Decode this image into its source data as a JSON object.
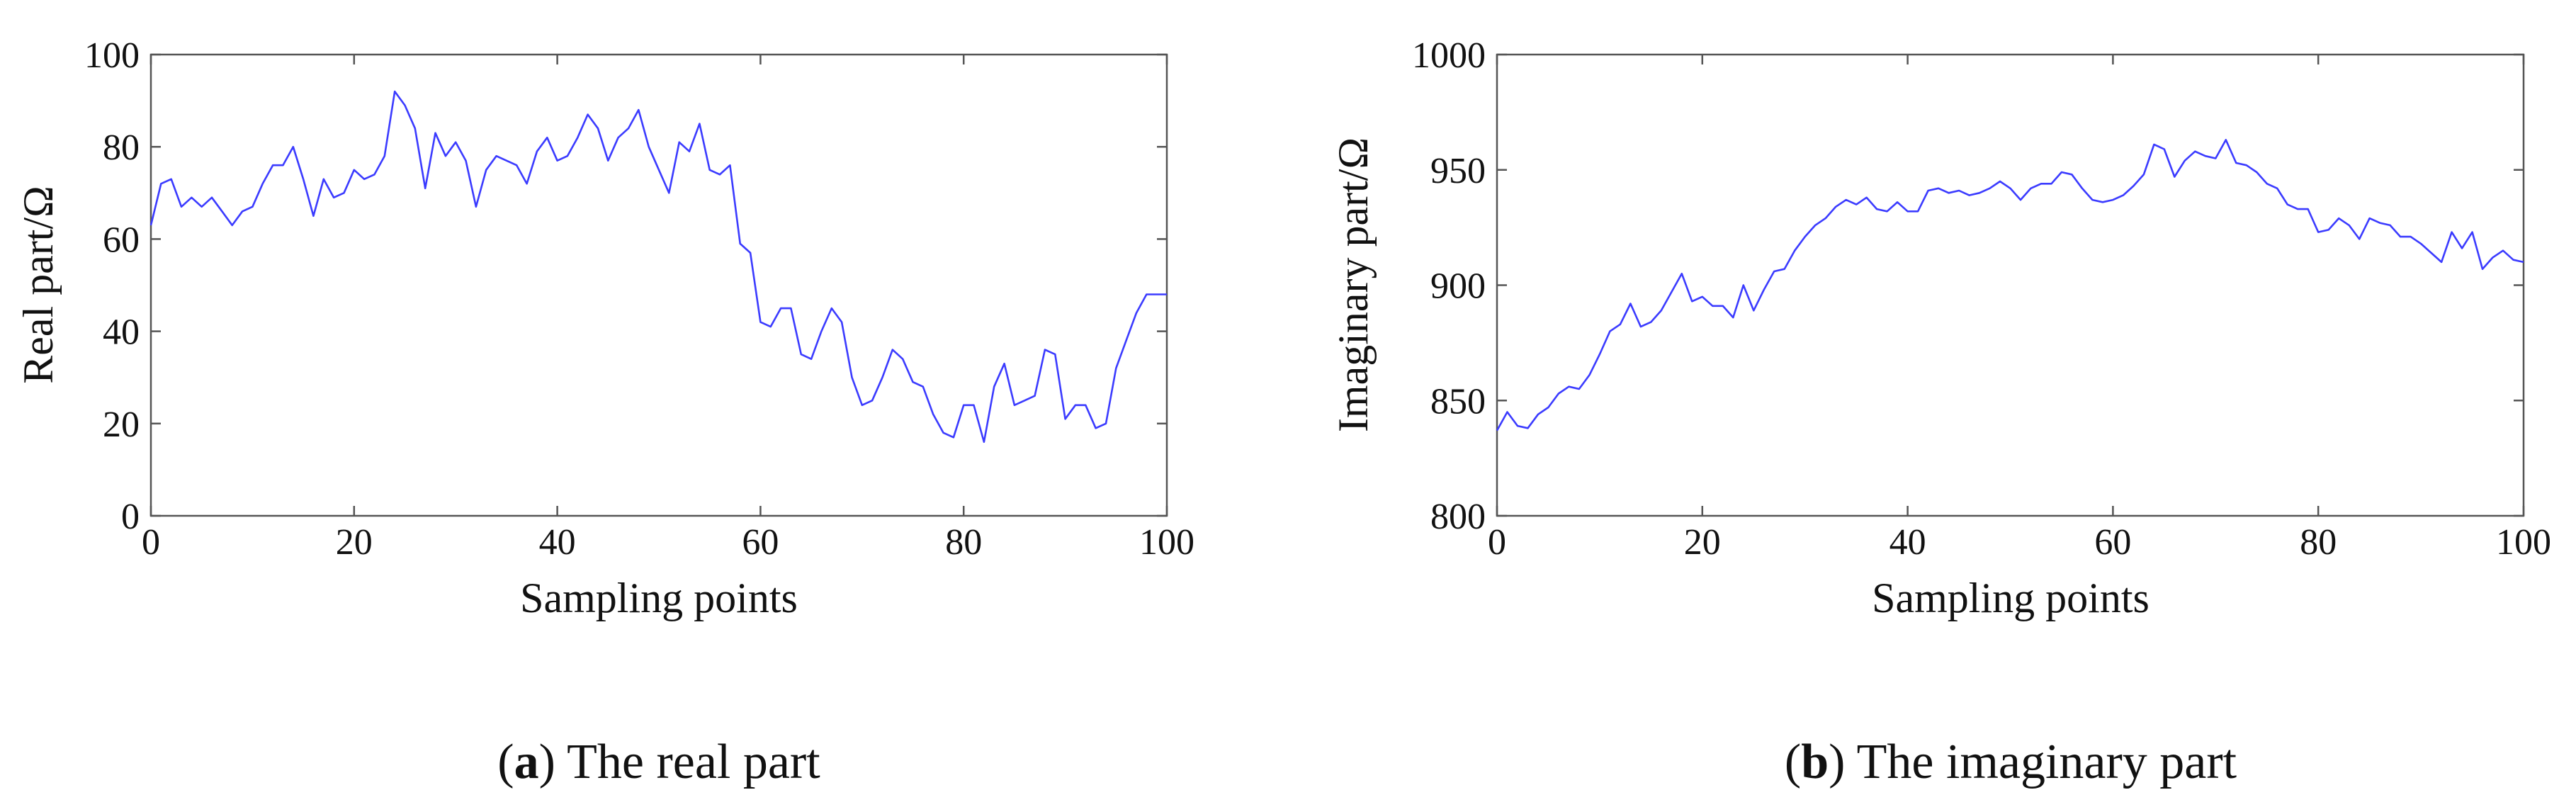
{
  "chart_data": [
    {
      "type": "line",
      "xlabel": "Sampling points",
      "ylabel": "Real part/Ω",
      "xlim": [
        0,
        100
      ],
      "ylim": [
        0,
        100
      ],
      "xticks": [
        "0",
        "20",
        "40",
        "60",
        "80",
        "100"
      ],
      "yticks": [
        "0",
        "20",
        "40",
        "60",
        "80",
        "100"
      ],
      "grid": false,
      "caption": {
        "letter": "a",
        "text": "The real part"
      },
      "series": [
        {
          "color": "#3b3bff",
          "x": [
            0,
            1,
            2,
            3,
            4,
            5,
            6,
            7,
            8,
            9,
            10,
            11,
            12,
            13,
            14,
            15,
            16,
            17,
            18,
            19,
            20,
            21,
            22,
            23,
            24,
            25,
            26,
            27,
            28,
            29,
            30,
            31,
            32,
            33,
            34,
            35,
            36,
            37,
            38,
            39,
            40,
            41,
            42,
            43,
            44,
            45,
            46,
            47,
            48,
            49,
            50,
            51,
            52,
            53,
            54,
            55,
            56,
            57,
            58,
            59,
            60,
            61,
            62,
            63,
            64,
            65,
            66,
            67,
            68,
            69,
            70,
            71,
            72,
            73,
            74,
            75,
            76,
            77,
            78,
            79,
            80,
            81,
            82,
            83,
            84,
            85,
            86,
            87,
            88,
            89,
            90,
            91,
            92,
            93,
            94,
            95,
            96,
            97,
            98,
            99,
            100
          ],
          "values": [
            63,
            72,
            73,
            67,
            69,
            67,
            69,
            66,
            63,
            66,
            67,
            72,
            76,
            76,
            80,
            73,
            65,
            73,
            69,
            70,
            75,
            73,
            74,
            78,
            92,
            89,
            84,
            71,
            83,
            78,
            81,
            77,
            67,
            75,
            78,
            77,
            76,
            72,
            79,
            82,
            77,
            78,
            82,
            87,
            84,
            77,
            82,
            84,
            88,
            80,
            75,
            70,
            81,
            79,
            85,
            75,
            74,
            76,
            59,
            57,
            42,
            41,
            45,
            45,
            35,
            34,
            40,
            45,
            42,
            30,
            24,
            25,
            30,
            36,
            34,
            29,
            28,
            22,
            18,
            17,
            24,
            24,
            16,
            28,
            33,
            24,
            25,
            26,
            36,
            35,
            21,
            24,
            24,
            19,
            20,
            32,
            38,
            44,
            48,
            48,
            48
          ]
        }
      ]
    },
    {
      "type": "line",
      "xlabel": "Sampling points",
      "ylabel": "Imaginary part/Ω",
      "xlim": [
        0,
        100
      ],
      "ylim": [
        800,
        1000
      ],
      "xticks": [
        "0",
        "20",
        "40",
        "60",
        "80",
        "100"
      ],
      "yticks": [
        "800",
        "850",
        "900",
        "950",
        "1000"
      ],
      "grid": false,
      "caption": {
        "letter": "b",
        "text": "The imaginary part"
      },
      "series": [
        {
          "color": "#3b3bff",
          "x": [
            0,
            1,
            2,
            3,
            4,
            5,
            6,
            7,
            8,
            9,
            10,
            11,
            12,
            13,
            14,
            15,
            16,
            17,
            18,
            19,
            20,
            21,
            22,
            23,
            24,
            25,
            26,
            27,
            28,
            29,
            30,
            31,
            32,
            33,
            34,
            35,
            36,
            37,
            38,
            39,
            40,
            41,
            42,
            43,
            44,
            45,
            46,
            47,
            48,
            49,
            50,
            51,
            52,
            53,
            54,
            55,
            56,
            57,
            58,
            59,
            60,
            61,
            62,
            63,
            64,
            65,
            66,
            67,
            68,
            69,
            70,
            71,
            72,
            73,
            74,
            75,
            76,
            77,
            78,
            79,
            80,
            81,
            82,
            83,
            84,
            85,
            86,
            87,
            88,
            89,
            90,
            91,
            92,
            93,
            94,
            95,
            96,
            97,
            98,
            99,
            100
          ],
          "values": [
            837,
            845,
            839,
            838,
            844,
            847,
            853,
            856,
            855,
            861,
            870,
            880,
            883,
            892,
            882,
            884,
            889,
            897,
            905,
            893,
            895,
            891,
            891,
            886,
            900,
            889,
            898,
            906,
            907,
            915,
            921,
            926,
            929,
            934,
            937,
            935,
            938,
            933,
            932,
            936,
            932,
            932,
            941,
            942,
            940,
            941,
            939,
            940,
            942,
            945,
            942,
            937,
            942,
            944,
            944,
            949,
            948,
            942,
            937,
            936,
            937,
            939,
            943,
            948,
            961,
            959,
            947,
            954,
            958,
            956,
            955,
            963,
            953,
            952,
            949,
            944,
            942,
            935,
            933,
            933,
            923,
            924,
            929,
            926,
            920,
            929,
            927,
            926,
            921,
            921,
            918,
            914,
            910,
            923,
            916,
            923,
            907,
            912,
            915,
            911,
            910
          ]
        }
      ]
    }
  ]
}
